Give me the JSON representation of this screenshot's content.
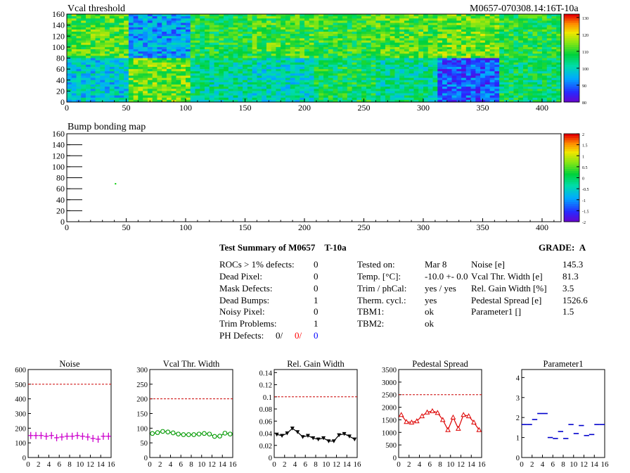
{
  "header": {
    "module_id": "M0657-070308.14:16T-10a"
  },
  "maps": [
    {
      "title": "Vcal threshold",
      "x_ticks": [
        0,
        50,
        100,
        150,
        200,
        250,
        300,
        350,
        400
      ],
      "y_ticks": [
        0,
        20,
        40,
        60,
        80,
        100,
        120,
        140,
        160
      ],
      "xlim": [
        0,
        416
      ],
      "ylim": [
        0,
        160
      ],
      "colorbar_ticks": [
        "130",
        "120",
        "110",
        "100",
        "90",
        "80"
      ],
      "colorbar_range": [
        80,
        132
      ]
    },
    {
      "title": "Bump bonding map",
      "x_ticks": [
        0,
        50,
        100,
        150,
        200,
        250,
        300,
        350,
        400
      ],
      "y_ticks": [
        0,
        20,
        40,
        60,
        80,
        100,
        120,
        140,
        160
      ],
      "xlim": [
        0,
        416
      ],
      "ylim": [
        0,
        160
      ],
      "colorbar_ticks": [
        "2",
        "1.5",
        "1",
        "0.5",
        "0",
        "-0.5",
        "-1",
        "-1.5",
        "-2"
      ],
      "colorbar_range": [
        -2,
        2
      ],
      "points": [
        {
          "x": 41,
          "y": 69
        }
      ]
    }
  ],
  "summary": {
    "title_prefix": "Test Summary of M0657",
    "title_suffix": "T-10a",
    "grade_label": "GRADE:",
    "grade_value": "A",
    "defects": [
      {
        "label": "ROCs > 1% defects:",
        "value": "0"
      },
      {
        "label": "Dead Pixel:",
        "value": "0"
      },
      {
        "label": "Mask Defects:",
        "value": "0"
      },
      {
        "label": "Dead Bumps:",
        "value": "1"
      },
      {
        "label": "Noisy Pixel:",
        "value": "0"
      },
      {
        "label": "Trim Problems:",
        "value": "1"
      }
    ],
    "ph_defects": {
      "label": "PH Defects:",
      "v1": "0/",
      "v2": "0/",
      "v3": "0"
    },
    "conditions": [
      {
        "label": "Tested on:",
        "value": "Mar 8"
      },
      {
        "label": "Temp. [°C]:",
        "value": "-10.0 +- 0.0"
      },
      {
        "label": "Trim / phCal:",
        "value": "yes / yes"
      },
      {
        "label": "Therm. cycl.:",
        "value": "yes"
      },
      {
        "label": "TBM1:",
        "value": "ok"
      },
      {
        "label": "TBM2:",
        "value": "ok"
      }
    ],
    "results": [
      {
        "label": "Noise [e]",
        "value": "145.3"
      },
      {
        "label": "Vcal Thr. Width [e]",
        "value": "81.3"
      },
      {
        "label": "Rel. Gain Width [%]",
        "value": "3.5"
      },
      {
        "label": "Pedestal Spread [e]",
        "value": "1526.6"
      },
      {
        "label": "Parameter1 []",
        "value": "1.5"
      }
    ]
  },
  "colors": {
    "noise": "#cc00cc",
    "vcal": "#009900",
    "gain": "#000000",
    "pedestal": "#dd0000",
    "param": "#0000cc",
    "limit": "#cc0000",
    "ph_v2": "#ff0000",
    "ph_v3": "#0000ff"
  },
  "chart_data": [
    {
      "type": "scatter",
      "title": "Noise",
      "xlim": [
        0,
        16
      ],
      "ylim": [
        0,
        600
      ],
      "x_ticks": [
        0,
        2,
        4,
        6,
        8,
        10,
        12,
        14,
        16
      ],
      "y_ticks": [
        "0",
        "100",
        "200",
        "300",
        "400",
        "500",
        "600"
      ],
      "limit": 500,
      "marker": "cross",
      "values": [
        150,
        150,
        150,
        145,
        150,
        135,
        140,
        145,
        145,
        150,
        145,
        140,
        130,
        125,
        145,
        145
      ]
    },
    {
      "type": "line",
      "title": "Vcal Thr. Width",
      "xlim": [
        0,
        16
      ],
      "ylim": [
        0,
        300
      ],
      "x_ticks": [
        0,
        2,
        4,
        6,
        8,
        10,
        12,
        14,
        16
      ],
      "y_ticks": [
        "0",
        "50",
        "100",
        "150",
        "200",
        "250",
        "300"
      ],
      "limit": 200,
      "marker": "circle",
      "values": [
        82,
        85,
        89,
        87,
        84,
        80,
        78,
        78,
        78,
        80,
        82,
        80,
        72,
        73,
        83,
        80
      ]
    },
    {
      "type": "line",
      "title": "Rel. Gain Width",
      "xlim": [
        0,
        16
      ],
      "ylim": [
        0,
        0.145
      ],
      "x_ticks": [
        0,
        2,
        4,
        6,
        8,
        10,
        12,
        14,
        16
      ],
      "y_ticks": [
        "0",
        "0.02",
        "0.04",
        "0.06",
        "0.08",
        "0.1",
        "0.12",
        "0.14"
      ],
      "limit": 0.1,
      "marker": "triangle-down",
      "values": [
        0.038,
        0.036,
        0.04,
        0.048,
        0.042,
        0.034,
        0.036,
        0.032,
        0.03,
        0.032,
        0.027,
        0.027,
        0.037,
        0.039,
        0.035,
        0.03
      ]
    },
    {
      "type": "line",
      "title": "Pedestal Spread",
      "xlim": [
        0,
        16
      ],
      "ylim": [
        0,
        3500
      ],
      "x_ticks": [
        0,
        2,
        4,
        6,
        8,
        10,
        12,
        14,
        16
      ],
      "y_ticks": [
        "0",
        "500",
        "1000",
        "1500",
        "2000",
        "2500",
        "3000",
        "3500"
      ],
      "limit": 2500,
      "marker": "triangle-up",
      "values": [
        1700,
        1420,
        1400,
        1450,
        1650,
        1800,
        1850,
        1780,
        1500,
        1100,
        1600,
        1150,
        1700,
        1650,
        1400,
        1100
      ]
    },
    {
      "type": "scatter",
      "title": "Parameter1",
      "xlim": [
        0,
        16
      ],
      "ylim": [
        0,
        4.4
      ],
      "x_ticks": [
        0,
        2,
        4,
        6,
        8,
        10,
        12,
        14,
        16
      ],
      "y_ticks": [
        "0",
        "1",
        "2",
        "3",
        "4"
      ],
      "marker": "hbar",
      "values": [
        1.65,
        1.65,
        1.9,
        2.2,
        2.2,
        1.0,
        0.95,
        1.3,
        0.95,
        1.65,
        1.2,
        1.6,
        1.1,
        1.15,
        1.65,
        1.65
      ]
    }
  ]
}
